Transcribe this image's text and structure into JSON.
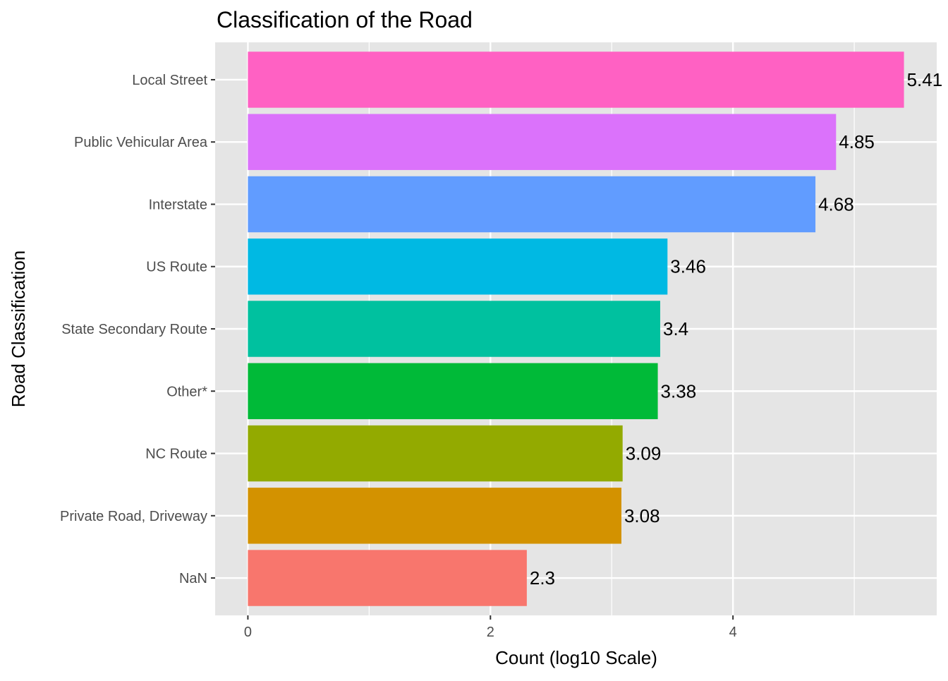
{
  "chart_data": {
    "type": "bar",
    "orientation": "horizontal",
    "title": "Classification of the Road",
    "xlabel": "Count (log10 Scale)",
    "ylabel": "Road Classification",
    "categories": [
      "NaN",
      "Private Road, Driveway",
      "NC Route",
      "Other*",
      "State Secondary Route",
      "US Route",
      "Interstate",
      "Public Vehicular Area",
      "Local Street"
    ],
    "values": [
      2.3,
      3.08,
      3.09,
      3.38,
      3.4,
      3.46,
      4.68,
      4.85,
      5.41
    ],
    "value_labels": [
      "2.3",
      "3.08",
      "3.09",
      "3.38",
      "3.4",
      "3.46",
      "4.68",
      "4.85",
      "5.41"
    ],
    "colors": [
      "#F8766D",
      "#D39200",
      "#93AA00",
      "#00BA38",
      "#00C19F",
      "#00B9E3",
      "#619CFF",
      "#DB72FB",
      "#FF61C3"
    ],
    "xlim": [
      -0.27,
      5.68
    ],
    "x_ticks": [
      0,
      2,
      4
    ],
    "x_tick_labels": [
      "0",
      "2",
      "4"
    ],
    "x_minor_ticks": [
      1,
      3,
      5
    ],
    "grid": true,
    "legend": "none",
    "panel_background": "#E5E5E5",
    "grid_color": "#FFFFFF"
  }
}
